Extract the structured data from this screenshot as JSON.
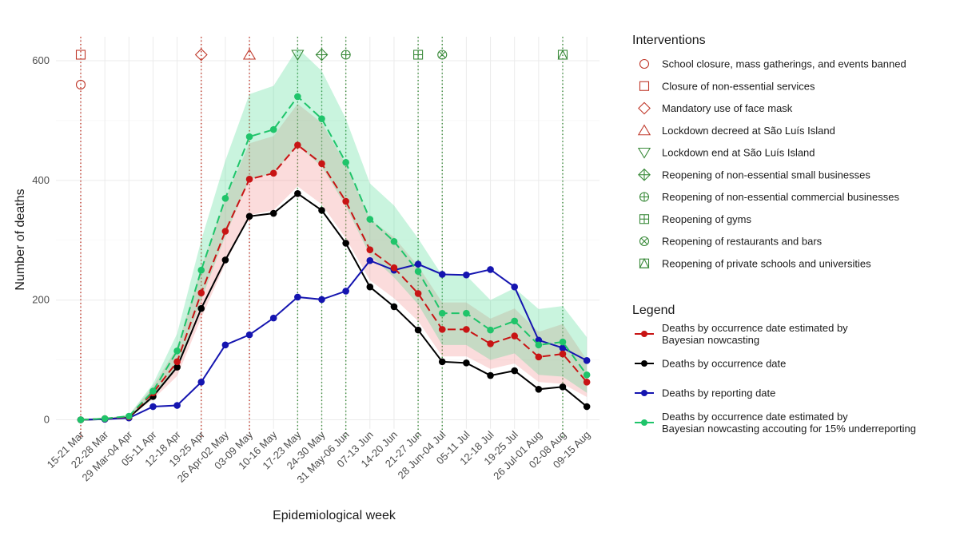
{
  "chart_data": {
    "type": "line",
    "xlabel": "Epidemiological week",
    "ylabel": "Number of deaths",
    "ylim": [
      -15,
      640
    ],
    "yticks": [
      0,
      200,
      400,
      600
    ],
    "grid": true,
    "legend_placement": "right",
    "categories": [
      "15-21 Mar",
      "22-28 Mar",
      "29 Mar-04 Apr",
      "05-11 Apr",
      "12-18 Apr",
      "19-25 Apr",
      "26 Apr-02 May",
      "03-09 May",
      "10-16 May",
      "17-23 May",
      "24-30 May",
      "31 May-06 Jun",
      "07-13 Jun",
      "14-20 Jun",
      "21-27 Jun",
      "28 Jun-04 Jul",
      "05-11 Jul",
      "12-18 Jul",
      "19-25 Jul",
      "26 Jul-01 Aug",
      "02-08 Aug",
      "09-15 Aug"
    ],
    "series": [
      {
        "name": "Deaths by occurrence date estimated by Bayesian nowcasting",
        "name_lines": [
          "Deaths by occurrence date estimated by",
          "Bayesian nowcasting"
        ],
        "color": "#c81414",
        "dashed": true,
        "values": [
          0,
          2,
          5,
          45,
          97,
          212,
          315,
          402,
          412,
          459,
          428,
          365,
          284,
          254,
          211,
          151,
          151,
          127,
          140,
          105,
          110,
          63
        ],
        "lower": [
          0,
          1,
          4,
          34,
          73,
          170,
          261,
          342,
          350,
          390,
          360,
          303,
          233,
          203,
          165,
          106,
          106,
          85,
          94,
          63,
          60,
          38
        ],
        "upper": [
          0,
          3,
          7,
          56,
          121,
          254,
          369,
          462,
          474,
          528,
          496,
          427,
          335,
          305,
          257,
          196,
          196,
          169,
          186,
          147,
          160,
          100
        ],
        "band_color": "#f08080"
      },
      {
        "name": "Deaths by occurrence date",
        "name_lines": [
          "Deaths by occurrence date"
        ],
        "color": "#000000",
        "dashed": false,
        "values": [
          0,
          1,
          4,
          39,
          88,
          186,
          267,
          340,
          345,
          378,
          350,
          295,
          222,
          189,
          150,
          97,
          95,
          74,
          82,
          51,
          55,
          22
        ]
      },
      {
        "name": "Deaths by reporting date",
        "name_lines": [
          "Deaths by reporting date"
        ],
        "color": "#1515b0",
        "dashed": false,
        "values": [
          0,
          1,
          3,
          22,
          24,
          63,
          125,
          142,
          170,
          205,
          201,
          215,
          266,
          250,
          260,
          243,
          242,
          251,
          222,
          133,
          120,
          99
        ]
      },
      {
        "name": "Deaths by occurrence date estimated by Bayesian nowcasting accouting for 15% underreporting",
        "name_lines": [
          "Deaths by occurrence date estimated by",
          "Bayesian nowcasting accouting for 15% underreporting"
        ],
        "color": "#1fc46a",
        "dashed": true,
        "values": [
          0,
          2,
          6,
          48,
          115,
          250,
          370,
          473,
          485,
          540,
          503,
          430,
          335,
          298,
          248,
          178,
          178,
          150,
          165,
          125,
          130,
          75
        ],
        "lower": [
          0,
          1,
          4,
          36,
          86,
          200,
          307,
          402,
          412,
          459,
          423,
          357,
          275,
          238,
          193,
          125,
          125,
          100,
          111,
          75,
          72,
          45
        ],
        "upper": [
          0,
          3,
          8,
          60,
          144,
          300,
          433,
          544,
          558,
          621,
          583,
          503,
          395,
          358,
          303,
          241,
          241,
          200,
          220,
          185,
          190,
          138
        ],
        "band_color": "#3cd68a"
      }
    ],
    "legend_title": "Legend",
    "interventions_title": "Interventions",
    "interventions": [
      {
        "label": "School closure, mass gatherings, and events banned",
        "symbol": "circle",
        "week": "15-21 Mar",
        "y": 560,
        "color": "#c0392b"
      },
      {
        "label": "Closure of non-essential services",
        "symbol": "square",
        "week": "15-21 Mar",
        "y": 610,
        "color": "#c0392b"
      },
      {
        "label": "Mandatory use of face mask",
        "symbol": "diamond",
        "week": "19-25 Apr",
        "y": 610,
        "color": "#c0392b"
      },
      {
        "label": "Lockdown decreed at São Luís Island",
        "symbol": "triangle-up",
        "week": "03-09 May",
        "y": 610,
        "color": "#c0392b"
      },
      {
        "label": "Lockdown end at São Luís Island",
        "symbol": "triangle-down",
        "week": "17-23 May",
        "y": 610,
        "color": "#3a8a3a"
      },
      {
        "label": "Reopening of non-essential small businesses",
        "symbol": "diamond-plus",
        "week": "24-30 May",
        "y": 610,
        "color": "#3a8a3a"
      },
      {
        "label": "Reopening of non-essential commercial businesses",
        "symbol": "circle-plus",
        "week": "31 May-06 Jun",
        "y": 610,
        "color": "#3a8a3a"
      },
      {
        "label": "Reopening of gyms",
        "symbol": "square-plus",
        "week": "21-27 Jun",
        "y": 610,
        "color": "#3a8a3a"
      },
      {
        "label": "Reopening of restaurants and bars",
        "symbol": "circle-x",
        "week": "28 Jun-04 Jul",
        "y": 610,
        "color": "#3a8a3a"
      },
      {
        "label": "Reopening of private schools and universities",
        "symbol": "square-triangle",
        "week": "02-08 Aug",
        "y": 610,
        "color": "#3a8a3a"
      }
    ]
  }
}
